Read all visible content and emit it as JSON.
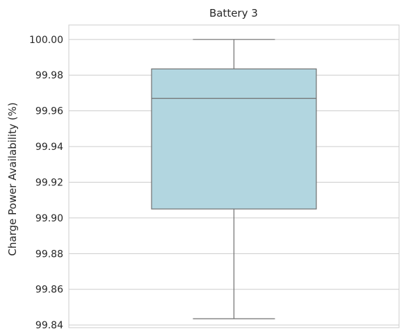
{
  "chart_data": {
    "type": "box",
    "title": "Battery 3",
    "xlabel": "",
    "ylabel": "Charge Power Availability (%)",
    "ylim": [
      99.8385,
      100.0081
    ],
    "yticks": [
      99.84,
      99.86,
      99.88,
      99.9,
      99.92,
      99.94,
      99.96,
      99.98,
      100.0
    ],
    "ytick_labels": [
      "99.84",
      "99.86",
      "99.88",
      "99.90",
      "99.92",
      "99.94",
      "99.96",
      "99.98",
      "100.00"
    ],
    "grid": "horizontal",
    "series": [
      {
        "whisker_low": 99.8435,
        "q1": 99.905,
        "median": 99.967,
        "q3": 99.9835,
        "whisker_high": 100.0
      }
    ],
    "colors": {
      "box_fill": "#b2d6e0",
      "box_edge": "#707070",
      "grid": "#cccccc",
      "frame": "#cccccc",
      "text": "#262626"
    }
  }
}
